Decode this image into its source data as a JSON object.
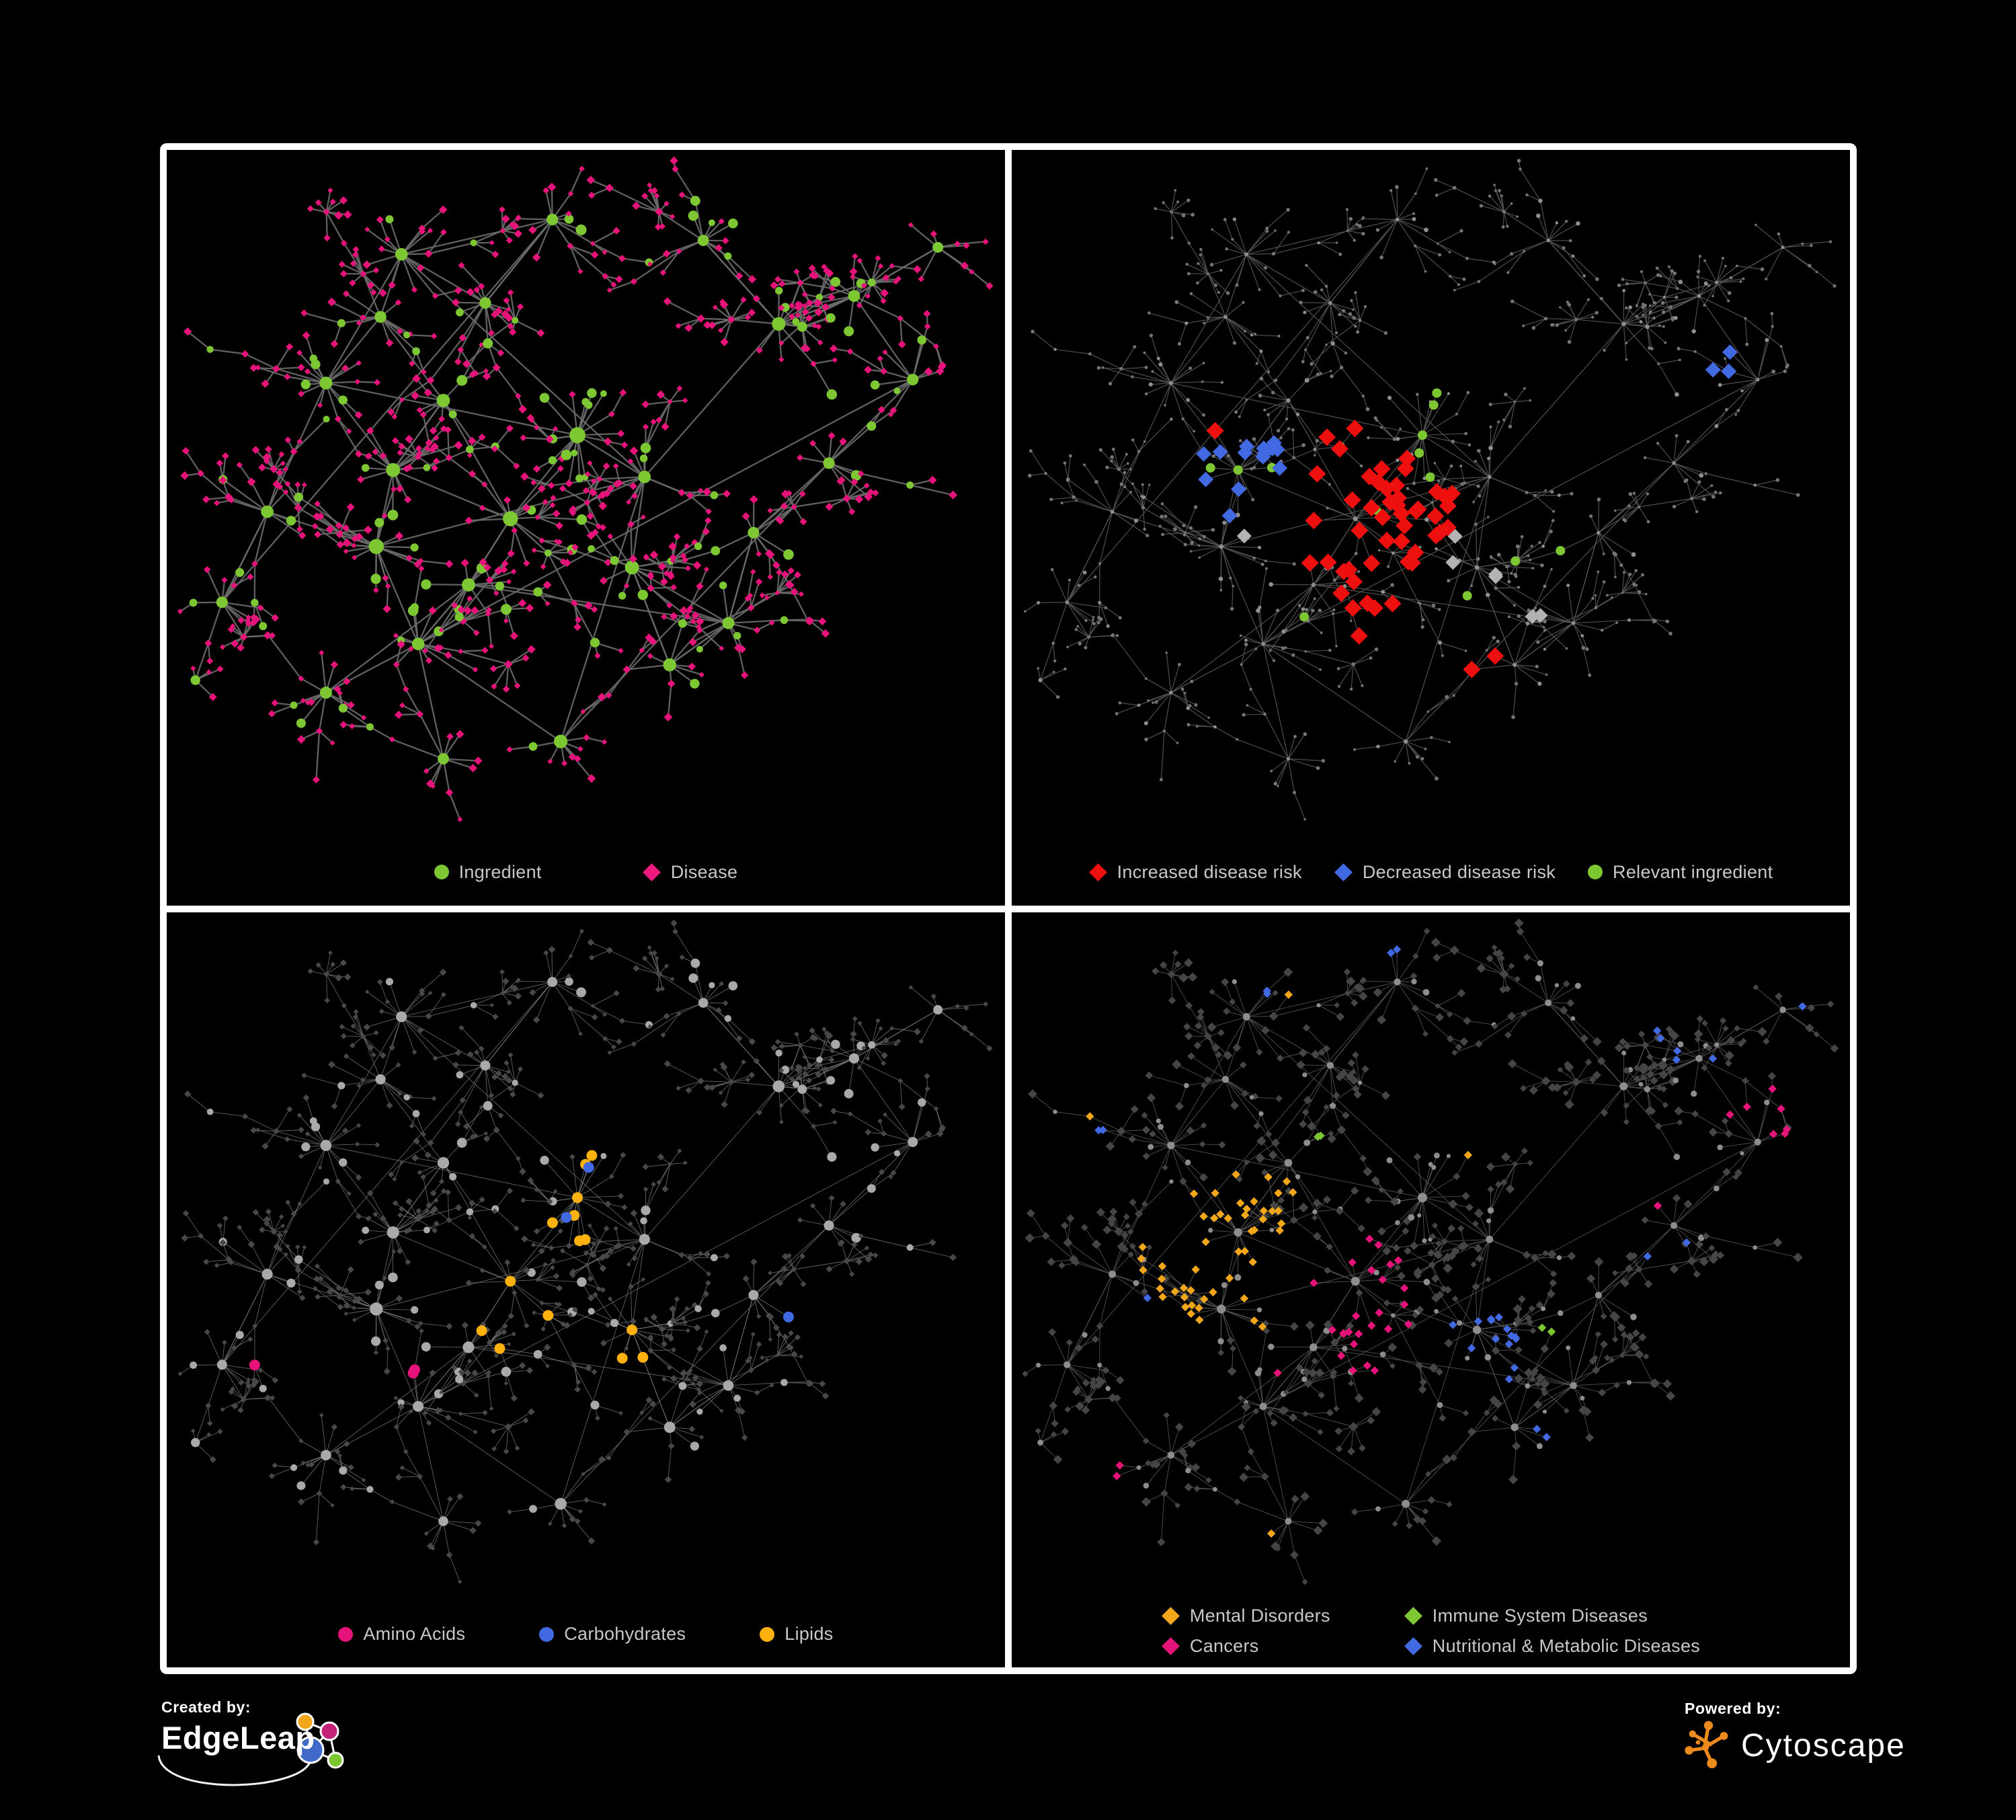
{
  "branding": {
    "created_by": {
      "label": "Created by:",
      "name": "EdgeLeap"
    },
    "powered_by": {
      "label": "Powered by:",
      "name": "Cytoscape"
    }
  },
  "colors": {
    "background": "#000000",
    "panel_border": "#ffffff",
    "legend_text": "#c8c8c8",
    "edgeleap_orange": "#f2a71b",
    "edgeleap_pink": "#c32178",
    "edgeleap_blue": "#4169c8",
    "edgeleap_green": "#7dc832",
    "cytoscape_orange": "#ee8b1e"
  },
  "network": {
    "seed": 42,
    "hubs": [
      [
        0.19,
        0.335,
        1.3
      ],
      [
        0.12,
        0.52,
        1.2
      ],
      [
        0.25,
        0.57,
        2.2
      ],
      [
        0.27,
        0.46,
        1.8
      ],
      [
        0.33,
        0.36,
        1.5
      ],
      [
        0.41,
        0.53,
        2.2
      ],
      [
        0.49,
        0.41,
        2.6
      ],
      [
        0.57,
        0.47,
        1.2
      ],
      [
        0.555,
        0.6,
        1.8
      ],
      [
        0.36,
        0.625,
        1.5
      ],
      [
        0.3,
        0.71,
        1.2
      ],
      [
        0.47,
        0.85,
        1.6
      ],
      [
        0.6,
        0.74,
        1.4
      ],
      [
        0.67,
        0.68,
        1.0
      ],
      [
        0.28,
        0.15,
        1.2
      ],
      [
        0.46,
        0.1,
        0.8
      ],
      [
        0.38,
        0.22,
        0.8
      ],
      [
        0.73,
        0.25,
        1.6
      ],
      [
        0.82,
        0.21,
        0.9
      ],
      [
        0.89,
        0.33,
        0.8
      ],
      [
        0.79,
        0.45,
        0.8
      ],
      [
        0.066,
        0.65,
        0.8
      ],
      [
        0.19,
        0.78,
        1.0
      ],
      [
        0.33,
        0.875,
        0.7
      ],
      [
        0.64,
        0.13,
        0.7
      ],
      [
        0.92,
        0.14,
        0.5
      ],
      [
        0.7,
        0.55,
        0.8
      ],
      [
        0.255,
        0.24,
        0.9
      ]
    ]
  },
  "panels": [
    {
      "name": "ingredient-disease",
      "legend": [
        {
          "label": "Ingredient",
          "shape": "circle",
          "color": "#7dc832"
        },
        {
          "label": "Disease",
          "shape": "diamond",
          "color": "#ec1a7f"
        }
      ],
      "style": {
        "edge": {
          "color": "#6a6a6a",
          "width": 2.3,
          "opacity": 0.9
        },
        "ingredient": {
          "shape": "circle",
          "color": "#7dc832",
          "r": 6.5,
          "hub_r": 11.5
        },
        "disease": {
          "shape": "diamond",
          "color": "#e6137b",
          "r": 5.2,
          "hub_r": 5.2
        },
        "highlights": []
      }
    },
    {
      "name": "disease-risk",
      "legend": [
        {
          "label": "Increased disease risk",
          "shape": "diamond",
          "color": "#ee0f0f"
        },
        {
          "label": "Decreased disease risk",
          "shape": "diamond",
          "color": "#4169e1"
        },
        {
          "label": "Relevant ingredient",
          "shape": "circle",
          "color": "#7dc832"
        }
      ],
      "style": {
        "edge": {
          "color": "#565656",
          "width": 1.2,
          "opacity": 0.9
        },
        "ingredient": {
          "shape": "circle",
          "color": "#8f8f8f",
          "r": 2.8,
          "hub_r": 3.6
        },
        "disease": {
          "shape": "circle",
          "color": "#757575",
          "r": 2.3,
          "hub_r": 2.3
        },
        "highlights": [
          {
            "on": "disease",
            "shape": "diamond",
            "color": "#ee0f0f",
            "size": 13,
            "spots": [
              [
                0.42,
                0.5,
                0.07,
                0.55
              ],
              [
                0.38,
                0.55,
                0.05,
                0.5
              ],
              [
                0.46,
                0.6,
                0.045,
                0.5
              ],
              [
                0.4,
                0.42,
                0.025,
                0.8
              ],
              [
                0.62,
                0.44,
                0.025,
                0.8
              ],
              [
                0.52,
                0.52,
                0.035,
                0.6
              ],
              [
                0.42,
                0.66,
                0.035,
                0.7
              ],
              [
                0.57,
                0.75,
                0.025,
                0.8
              ],
              [
                0.62,
                0.8,
                0.022,
                0.8
              ],
              [
                0.245,
                0.4,
                0.022,
                0.8
              ],
              [
                0.345,
                0.47,
                0.03,
                0.5
              ]
            ]
          },
          {
            "on": "disease",
            "shape": "diamond",
            "color": "#4169e1",
            "size": 11.5,
            "spots": [
              [
                0.235,
                0.48,
                0.05,
                0.55
              ],
              [
                0.85,
                0.33,
                0.035,
                0.9
              ],
              [
                0.3,
                0.44,
                0.025,
                0.5
              ]
            ]
          },
          {
            "on": "disease",
            "shape": "diamond",
            "color": "#b3b3b3",
            "size": 11,
            "spots": [
              [
                0.3,
                0.42,
                0.025,
                0.6
              ],
              [
                0.475,
                0.445,
                0.025,
                0.5
              ],
              [
                0.52,
                0.58,
                0.027,
                0.6
              ],
              [
                0.56,
                0.62,
                0.022,
                0.5
              ],
              [
                0.285,
                0.56,
                0.022,
                0.6
              ],
              [
                0.64,
                0.68,
                0.022,
                0.6
              ]
            ]
          },
          {
            "on": "ingredient",
            "shape": "circle",
            "color": "#7dc832",
            "size": 7,
            "spots": [
              [
                0.44,
                0.5,
                0.1,
                0.5
              ],
              [
                0.25,
                0.44,
                0.07,
                0.55
              ],
              [
                0.33,
                0.52,
                0.06,
                0.4
              ],
              [
                0.55,
                0.6,
                0.06,
                0.45
              ],
              [
                0.28,
                0.35,
                0.04,
                0.5
              ],
              [
                0.49,
                0.41,
                0.06,
                0.35
              ],
              [
                0.3,
                0.62,
                0.04,
                0.5
              ],
              [
                0.66,
                0.55,
                0.03,
                0.6
              ],
              [
                0.105,
                0.42,
                0.025,
                0.7
              ],
              [
                0.36,
                0.7,
                0.03,
                0.5
              ],
              [
                0.84,
                0.3,
                0.02,
                0.6
              ]
            ]
          }
        ]
      }
    },
    {
      "name": "macronutrients",
      "legend": [
        {
          "label": "Amino Acids",
          "shape": "circle",
          "color": "#e6137b"
        },
        {
          "label": "Carbohydrates",
          "shape": "circle",
          "color": "#4169e1"
        },
        {
          "label": "Lipids",
          "shape": "circle",
          "color": "#ffb20e"
        }
      ],
      "style": {
        "edge": {
          "color": "#8a8a8a",
          "width": 0.9,
          "opacity": 0.7
        },
        "ingredient": {
          "shape": "circle",
          "color": "#a9a9a9",
          "r": 6,
          "hub_r": 10
        },
        "disease": {
          "shape": "diamond",
          "color": "#484848",
          "r": 4.3,
          "hub_r": 4.3
        },
        "highlights": [
          {
            "on": "ingredient",
            "shape": "circle",
            "color": "#ffb20e",
            "size": 8,
            "spots": [
              [
                0.49,
                0.42,
                0.062,
                0.85
              ],
              [
                0.39,
                0.55,
                0.085,
                0.33
              ],
              [
                0.56,
                0.655,
                0.048,
                0.9
              ],
              [
                0.65,
                0.63,
                0.04,
                0.45
              ],
              [
                0.43,
                0.33,
                0.06,
                0.3
              ],
              [
                0.3,
                0.28,
                0.08,
                0.2
              ],
              [
                0.33,
                0.48,
                0.05,
                0.35
              ],
              [
                0.88,
                0.48,
                0.04,
                0.45
              ],
              [
                0.27,
                0.74,
                0.03,
                0.5
              ],
              [
                0.42,
                0.86,
                0.03,
                0.5
              ],
              [
                0.07,
                0.7,
                0.03,
                0.55
              ],
              [
                0.345,
                0.075,
                0.025,
                0.5
              ],
              [
                0.74,
                0.615,
                0.02,
                0.7
              ],
              [
                0.235,
                0.62,
                0.03,
                0.4
              ]
            ]
          },
          {
            "on": "ingredient",
            "shape": "circle",
            "color": "#4169e1",
            "size": 8,
            "spots": [
              [
                0.5,
                0.41,
                0.05,
                0.4
              ],
              [
                0.135,
                0.225,
                0.022,
                0.9
              ],
              [
                0.75,
                0.575,
                0.025,
                0.9
              ],
              [
                0.4,
                0.47,
                0.04,
                0.12
              ],
              [
                0.44,
                0.31,
                0.03,
                0.2
              ]
            ]
          },
          {
            "on": "ingredient",
            "shape": "circle",
            "color": "#e6137b",
            "size": 8,
            "spots": [
              [
                0.46,
                0.72,
                0.025,
                0.8
              ],
              [
                0.72,
                0.71,
                0.027,
                0.8
              ],
              [
                0.77,
                0.76,
                0.025,
                0.8
              ],
              [
                0.1,
                0.33,
                0.025,
                0.8
              ],
              [
                0.47,
                0.05,
                0.022,
                0.9
              ],
              [
                0.21,
                0.495,
                0.028,
                0.7
              ],
              [
                0.105,
                0.68,
                0.025,
                0.7
              ],
              [
                0.9,
                0.33,
                0.03,
                0.8
              ],
              [
                0.76,
                0.3,
                0.027,
                0.65
              ],
              [
                0.315,
                0.655,
                0.025,
                0.55
              ],
              [
                0.2,
                0.855,
                0.025,
                0.65
              ],
              [
                0.56,
                0.45,
                0.02,
                0.5
              ],
              [
                0.63,
                0.2,
                0.022,
                0.5
              ]
            ]
          }
        ]
      }
    },
    {
      "name": "disease-categories",
      "legend": [
        {
          "label": "Mental Disorders",
          "shape": "diamond",
          "color": "#f2a71b"
        },
        {
          "label": "Immune System Diseases",
          "shape": "diamond",
          "color": "#7dc832"
        },
        {
          "label": "Cancers",
          "shape": "diamond",
          "color": "#e6137b"
        },
        {
          "label": "Nutritional & Metabolic Diseases",
          "shape": "diamond",
          "color": "#4169e1"
        }
      ],
      "style": {
        "edge": {
          "color": "#646464",
          "width": 0.9,
          "opacity": 0.8
        },
        "ingredient": {
          "shape": "circle",
          "color": "#8d8d8d",
          "r": 4,
          "hub_r": 6.8
        },
        "disease": {
          "shape": "diamond",
          "color": "#454545",
          "r": 5.8,
          "hub_r": 5.8
        },
        "highlights": [
          {
            "on": "disease",
            "shape": "diamond",
            "color": "#f2a71b",
            "size": 6.2,
            "spots": [
              [
                0.235,
                0.49,
                0.085,
                0.9
              ],
              [
                0.3,
                0.42,
                0.05,
                0.4
              ],
              [
                0.29,
                0.55,
                0.045,
                0.3
              ],
              [
                0.35,
                0.095,
                0.028,
                0.75
              ],
              [
                0.48,
                0.78,
                0.028,
                0.6
              ],
              [
                0.55,
                0.33,
                0.022,
                0.45
              ],
              [
                0.3,
                0.88,
                0.022,
                0.5
              ],
              [
                0.105,
                0.3,
                0.025,
                0.4
              ]
            ]
          },
          {
            "on": "disease",
            "shape": "diamond",
            "color": "#e6137b",
            "size": 6.2,
            "spots": [
              [
                0.41,
                0.55,
                0.07,
                0.55
              ],
              [
                0.44,
                0.62,
                0.05,
                0.5
              ],
              [
                0.9,
                0.3,
                0.045,
                0.8
              ],
              [
                0.3,
                0.66,
                0.028,
                0.6
              ],
              [
                0.14,
                0.82,
                0.028,
                0.6
              ],
              [
                0.47,
                0.3,
                0.022,
                0.45
              ],
              [
                0.76,
                0.43,
                0.022,
                0.45
              ],
              [
                0.59,
                0.7,
                0.02,
                0.4
              ]
            ]
          },
          {
            "on": "disease",
            "shape": "diamond",
            "color": "#4169e1",
            "size": 6.2,
            "spots": [
              [
                0.56,
                0.63,
                0.05,
                0.85
              ],
              [
                0.68,
                0.4,
                0.08,
                0.45
              ],
              [
                0.855,
                0.14,
                0.09,
                0.35
              ],
              [
                0.45,
                0.075,
                0.032,
                0.6
              ],
              [
                0.3,
                0.115,
                0.03,
                0.45
              ],
              [
                0.78,
                0.47,
                0.032,
                0.55
              ],
              [
                0.4,
                0.86,
                0.027,
                0.5
              ],
              [
                0.085,
                0.305,
                0.027,
                0.5
              ],
              [
                0.22,
                0.62,
                0.03,
                0.35
              ],
              [
                0.63,
                0.75,
                0.027,
                0.5
              ],
              [
                0.53,
                0.88,
                0.022,
                0.5
              ],
              [
                0.895,
                0.42,
                0.03,
                0.5
              ],
              [
                0.16,
                0.56,
                0.02,
                0.3
              ]
            ]
          },
          {
            "on": "disease",
            "shape": "diamond",
            "color": "#7dc832",
            "size": 6.2,
            "spots": [
              [
                0.36,
                0.33,
                0.016,
                0.9
              ],
              [
                0.475,
                0.42,
                0.016,
                0.9
              ],
              [
                0.645,
                0.6,
                0.016,
                0.9
              ],
              [
                0.21,
                0.875,
                0.016,
                0.9
              ],
              [
                0.5,
                0.325,
                0.013,
                0.8
              ],
              [
                0.31,
                0.3,
                0.013,
                0.8
              ],
              [
                0.58,
                0.245,
                0.013,
                0.7
              ]
            ]
          }
        ]
      }
    }
  ]
}
